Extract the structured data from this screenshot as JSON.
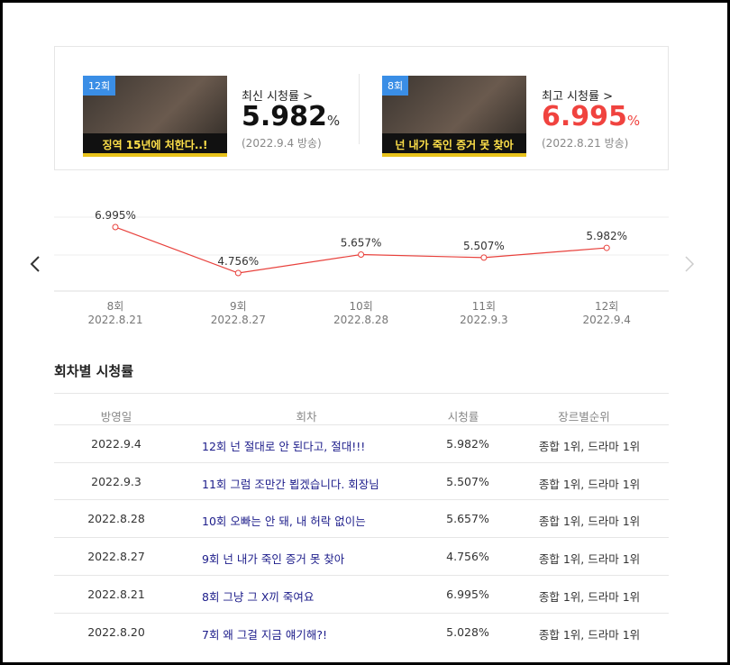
{
  "summary": {
    "latest": {
      "badge": "12회",
      "caption": "징역 15년에 처한다..!",
      "label": "최신 시청률 >",
      "value": "5.982",
      "unit": "%",
      "date": "(2022.9.4 방송)"
    },
    "best": {
      "badge": "8회",
      "caption": "넌 내가 죽인 증거 못 찾아",
      "label": "최고 시청률 >",
      "value": "6.995",
      "unit": "%",
      "date": "(2022.8.21 방송)"
    }
  },
  "chart_data": {
    "type": "line",
    "categories": [
      "8회",
      "9회",
      "10회",
      "11회",
      "12회"
    ],
    "dates": [
      "2022.8.21",
      "2022.8.27",
      "2022.8.28",
      "2022.9.3",
      "2022.9.4"
    ],
    "values": [
      6.995,
      4.756,
      5.657,
      5.507,
      5.982
    ],
    "value_labels": [
      "6.995%",
      "4.756%",
      "5.657%",
      "5.507%",
      "5.982%"
    ],
    "color": "#e8413c"
  },
  "table": {
    "title": "회차별 시청률",
    "columns": [
      "방영일",
      "회차",
      "시청률",
      "장르별순위"
    ],
    "rows": [
      [
        "2022.9.4",
        "12회 넌 절대로 안 된다고, 절대!!!",
        "5.982%",
        "종합 1위, 드라마 1위"
      ],
      [
        "2022.9.3",
        "11회 그럼 조만간 뵙겠습니다. 회장님",
        "5.507%",
        "종합 1위, 드라마 1위"
      ],
      [
        "2022.8.28",
        "10회 오빠는 안 돼, 내 허락 없이는",
        "5.657%",
        "종합 1위, 드라마 1위"
      ],
      [
        "2022.8.27",
        "9회 넌 내가 죽인 증거 못 찾아",
        "4.756%",
        "종합 1위, 드라마 1위"
      ],
      [
        "2022.8.21",
        "8회 그냥 그 X끼 죽여요",
        "6.995%",
        "종합 1위, 드라마 1위"
      ],
      [
        "2022.8.20",
        "7회 왜 그걸 지금 얘기해?!",
        "5.028%",
        "종합 1위, 드라마 1위"
      ]
    ]
  }
}
